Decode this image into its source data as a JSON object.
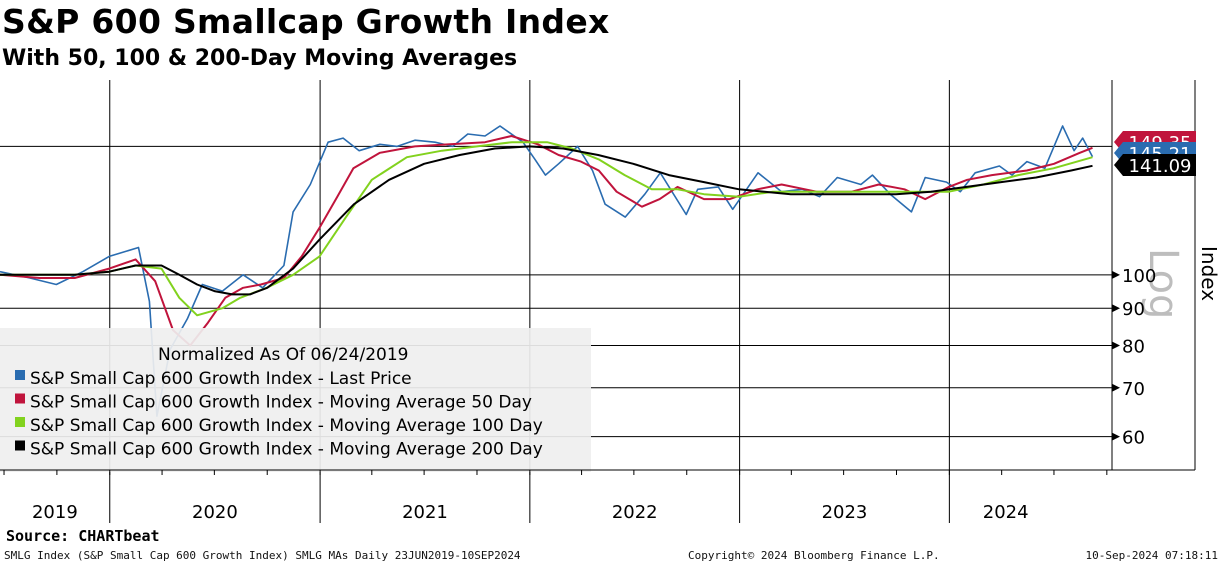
{
  "title": "S&P 600 Smallcap Growth Index",
  "subtitle": "With 50, 100 & 200-Day Moving Averages",
  "source": "Source: CHARTbeat",
  "footer": {
    "left": "SMLG Index (S&P Small Cap 600 Growth Index) SMLG MAs  Daily 23JUN2019-10SEP2024",
    "center": "Copyright© 2024 Bloomberg Finance L.P.",
    "right": "10-Sep-2024 07:18:11"
  },
  "chart_data": {
    "type": "line",
    "title": "S&P 600 Smallcap Growth Index",
    "subtitle": "With 50, 100 & 200-Day Moving Averages",
    "ylabel": "Index",
    "y_scale": "log",
    "watermark": "Log",
    "ylim": [
      54,
      185
    ],
    "y_ticks": [
      60,
      70,
      80,
      90,
      100
    ],
    "xlim": [
      "2019-06-24",
      "2024-10-10"
    ],
    "x_tick_labels": [
      "2019",
      "2020",
      "2021",
      "2022",
      "2023",
      "2024"
    ],
    "grid": true,
    "legend_position": "bottom-left",
    "legend_note": "Normalized As Of 06/24/2019",
    "last_value_tags": [
      {
        "series": "S&P Small Cap 600 Growth Index - Moving Average 50 Day",
        "label": "149.35",
        "color": "#c0143c",
        "text_color": "#ffffff"
      },
      {
        "series": "S&P Small Cap 600 Growth Index - Last Price",
        "label": "145.21",
        "color": "#2a6cb0",
        "text_color": "#ffffff"
      },
      {
        "series": "S&P Small Cap 600 Growth Index - Moving Average 200 Day",
        "label": "141.09",
        "color": "#000000",
        "text_color": "#ffffff"
      }
    ],
    "series": [
      {
        "name": "S&P Small Cap 600 Growth Index - Last Price",
        "color": "#2a6cb0",
        "x": [
          "2019-06-24",
          "2019-08-15",
          "2019-09-30",
          "2019-11-15",
          "2019-12-31",
          "2020-02-20",
          "2020-03-10",
          "2020-03-23",
          "2020-04-15",
          "2020-05-15",
          "2020-06-10",
          "2020-07-15",
          "2020-08-20",
          "2020-09-23",
          "2020-10-30",
          "2020-11-15",
          "2020-12-15",
          "2021-01-15",
          "2021-02-10",
          "2021-03-10",
          "2021-04-15",
          "2021-05-15",
          "2021-06-15",
          "2021-07-20",
          "2021-08-20",
          "2021-09-15",
          "2021-10-15",
          "2021-11-10",
          "2021-12-20",
          "2022-01-10",
          "2022-01-28",
          "2022-02-20",
          "2022-03-25",
          "2022-04-20",
          "2022-05-12",
          "2022-06-16",
          "2022-07-20",
          "2022-08-16",
          "2022-09-30",
          "2022-10-20",
          "2022-11-25",
          "2022-12-20",
          "2023-02-02",
          "2023-03-15",
          "2023-04-20",
          "2023-05-20",
          "2023-06-20",
          "2023-07-31",
          "2023-08-20",
          "2023-09-20",
          "2023-10-27",
          "2023-11-20",
          "2023-12-27",
          "2024-01-20",
          "2024-02-15",
          "2024-03-28",
          "2024-04-19",
          "2024-05-15",
          "2024-06-15",
          "2024-07-16",
          "2024-08-05",
          "2024-08-20",
          "2024-09-06"
        ],
        "values": [
          101,
          99,
          97,
          101,
          106,
          109,
          92,
          64,
          79,
          87,
          97,
          95,
          100,
          96,
          103,
          122,
          133,
          152,
          154,
          148,
          151,
          150,
          153,
          152,
          150,
          156,
          155,
          160,
          152,
          144,
          137,
          142,
          150,
          139,
          125,
          120,
          129,
          138,
          121,
          131,
          132,
          123,
          138,
          130,
          131,
          128,
          136,
          133,
          137,
          129,
          122,
          136,
          134,
          130,
          138,
          141,
          137,
          143,
          140,
          160,
          148,
          154,
          145.21
        ]
      },
      {
        "name": "S&P Small Cap 600 Growth Index - Moving Average 50 Day",
        "color": "#c0143c",
        "x": [
          "2019-06-24",
          "2019-09-01",
          "2019-11-01",
          "2019-12-31",
          "2020-02-15",
          "2020-03-20",
          "2020-04-20",
          "2020-05-20",
          "2020-06-20",
          "2020-07-20",
          "2020-08-20",
          "2020-09-20",
          "2020-10-30",
          "2020-11-30",
          "2020-12-31",
          "2021-01-31",
          "2021-02-28",
          "2021-04-15",
          "2021-06-15",
          "2021-08-15",
          "2021-10-15",
          "2021-11-30",
          "2022-01-15",
          "2022-02-20",
          "2022-03-31",
          "2022-05-01",
          "2022-06-01",
          "2022-07-15",
          "2022-08-15",
          "2022-09-15",
          "2022-10-31",
          "2022-12-15",
          "2023-02-01",
          "2023-03-15",
          "2023-05-15",
          "2023-07-15",
          "2023-08-31",
          "2023-10-15",
          "2023-11-20",
          "2023-12-31",
          "2024-02-01",
          "2024-03-15",
          "2024-05-15",
          "2024-07-01",
          "2024-08-15",
          "2024-09-06"
        ],
        "values": [
          100,
          99,
          99,
          102,
          105,
          98,
          84,
          80,
          86,
          93,
          96,
          97,
          99,
          106,
          116,
          128,
          140,
          147,
          150,
          151,
          152,
          155,
          151,
          146,
          143,
          139,
          130,
          124,
          127,
          132,
          127,
          127,
          131,
          133,
          130,
          130,
          133,
          131,
          127,
          132,
          135,
          137,
          139,
          142,
          147,
          149.35
        ]
      },
      {
        "name": "S&P Small Cap 600 Growth Index - Moving Average 100 Day",
        "color": "#82d21e",
        "x": [
          "2019-06-24",
          "2019-09-01",
          "2019-11-01",
          "2019-12-31",
          "2020-02-15",
          "2020-03-31",
          "2020-05-01",
          "2020-06-01",
          "2020-07-15",
          "2020-08-15",
          "2020-09-30",
          "2020-11-15",
          "2020-12-31",
          "2021-02-15",
          "2021-04-01",
          "2021-06-01",
          "2021-08-01",
          "2021-10-01",
          "2021-12-01",
          "2022-01-31",
          "2022-03-15",
          "2022-05-01",
          "2022-06-15",
          "2022-08-01",
          "2022-09-15",
          "2022-10-31",
          "2022-12-31",
          "2023-02-28",
          "2023-04-30",
          "2023-06-30",
          "2023-08-31",
          "2023-10-31",
          "2023-12-31",
          "2024-02-29",
          "2024-04-30",
          "2024-06-30",
          "2024-09-06"
        ],
        "values": [
          100,
          100,
          100,
          101,
          103,
          102,
          93,
          88,
          90,
          93,
          96,
          100,
          106,
          120,
          135,
          145,
          148,
          150,
          152,
          152,
          149,
          144,
          137,
          131,
          131,
          129,
          128,
          130,
          130,
          130,
          130,
          130,
          130,
          133,
          137,
          140,
          145
        ]
      },
      {
        "name": "S&P Small Cap 600 Growth Index - Moving Average 200 Day",
        "color": "#000000",
        "x": [
          "2019-06-24",
          "2019-09-01",
          "2019-11-01",
          "2019-12-31",
          "2020-02-15",
          "2020-03-31",
          "2020-05-01",
          "2020-06-01",
          "2020-07-01",
          "2020-08-01",
          "2020-09-01",
          "2020-10-01",
          "2020-11-15",
          "2021-01-01",
          "2021-03-01",
          "2021-05-01",
          "2021-07-01",
          "2021-09-01",
          "2021-11-01",
          "2021-12-31",
          "2022-02-28",
          "2022-04-30",
          "2022-06-30",
          "2022-08-31",
          "2022-10-31",
          "2022-12-31",
          "2023-03-31",
          "2023-06-30",
          "2023-09-30",
          "2023-11-30",
          "2024-01-31",
          "2024-03-31",
          "2024-05-31",
          "2024-07-31",
          "2024-09-06"
        ],
        "values": [
          100,
          100,
          100,
          101,
          103,
          103,
          100,
          97,
          95,
          94,
          94,
          96,
          102,
          112,
          125,
          135,
          142,
          146,
          149,
          150,
          149,
          146,
          142,
          137,
          134,
          131,
          129,
          129,
          129,
          130,
          132,
          134,
          136,
          139,
          141.09
        ]
      }
    ]
  }
}
